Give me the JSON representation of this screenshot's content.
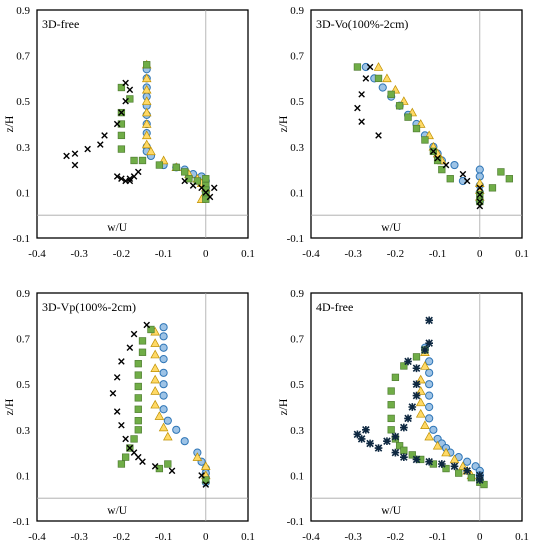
{
  "chart_data": [
    {
      "type": "scatter",
      "title": "3D-free",
      "xlabel": "w/U",
      "ylabel": "z/H",
      "xlim": [
        -0.4,
        0.1
      ],
      "ylim": [
        -0.1,
        0.9
      ],
      "xticks": [
        "-0.4",
        "-0.3",
        "-0.2",
        "-0.1",
        "0",
        "0.1"
      ],
      "yticks": [
        "-0.1",
        "0.1",
        "0.3",
        "0.5",
        "0.7",
        "0.9"
      ],
      "series": [
        {
          "marker": "circle",
          "color": "#9DC3E6",
          "x": [
            -0.14,
            -0.14,
            -0.14,
            -0.14,
            -0.14,
            -0.14,
            -0.14,
            -0.14,
            -0.14,
            -0.14,
            -0.13,
            -0.1,
            -0.07,
            -0.05,
            -0.03,
            -0.01,
            0.0,
            0.0,
            0.0,
            0.0
          ],
          "y": [
            0.64,
            0.6,
            0.56,
            0.52,
            0.48,
            0.44,
            0.4,
            0.36,
            0.3,
            0.28,
            0.26,
            0.22,
            0.21,
            0.2,
            0.18,
            0.17,
            0.15,
            0.12,
            0.1,
            0.08
          ]
        },
        {
          "marker": "triangle",
          "color": "#FFD966",
          "x": [
            -0.14,
            -0.14,
            -0.14,
            -0.14,
            -0.14,
            -0.14,
            -0.14,
            -0.14,
            -0.13,
            -0.1,
            -0.07,
            -0.04,
            -0.02,
            -0.01,
            0.0,
            0.0,
            -0.01
          ],
          "y": [
            0.66,
            0.6,
            0.55,
            0.5,
            0.45,
            0.4,
            0.35,
            0.31,
            0.28,
            0.24,
            0.21,
            0.18,
            0.16,
            0.14,
            0.12,
            0.1,
            0.07
          ]
        },
        {
          "marker": "square",
          "color": "#70AD47",
          "x": [
            -0.14,
            -0.2,
            -0.18,
            -0.2,
            -0.2,
            -0.2,
            -0.2,
            -0.17,
            -0.15,
            -0.11,
            -0.07,
            -0.05,
            -0.04,
            -0.02,
            0.0,
            0.0,
            0.0,
            0.0,
            0.0
          ],
          "y": [
            0.66,
            0.56,
            0.51,
            0.45,
            0.4,
            0.35,
            0.29,
            0.24,
            0.24,
            0.22,
            0.21,
            0.19,
            0.16,
            0.15,
            0.13,
            0.11,
            0.09,
            0.07,
            0.16
          ]
        },
        {
          "marker": "x",
          "color": "#000000",
          "x": [
            -0.19,
            -0.18,
            -0.19,
            -0.2,
            -0.21,
            -0.24,
            -0.25,
            -0.28,
            -0.31,
            -0.33,
            -0.31,
            -0.16,
            -0.17,
            -0.18,
            -0.18,
            -0.19,
            -0.2,
            -0.21,
            -0.05,
            -0.03,
            -0.01,
            0.0,
            0.01,
            0.02
          ],
          "y": [
            0.58,
            0.55,
            0.5,
            0.45,
            0.4,
            0.35,
            0.31,
            0.29,
            0.27,
            0.26,
            0.22,
            0.19,
            0.17,
            0.16,
            0.15,
            0.15,
            0.16,
            0.17,
            0.15,
            0.13,
            0.12,
            0.1,
            0.08,
            0.12
          ]
        }
      ]
    },
    {
      "type": "scatter",
      "title": "3D-Vo(100%-2cm)",
      "xlabel": "w/U",
      "ylabel": "z/H",
      "xlim": [
        -0.4,
        0.1
      ],
      "ylim": [
        -0.1,
        0.9
      ],
      "xticks": [
        "-0.4",
        "-0.3",
        "-0.2",
        "-0.1",
        "0",
        "0.1"
      ],
      "yticks": [
        "-0.1",
        "0.1",
        "0.3",
        "0.5",
        "0.7",
        "0.9"
      ],
      "series": [
        {
          "marker": "circle",
          "color": "#9DC3E6",
          "x": [
            -0.27,
            -0.25,
            -0.23,
            -0.21,
            -0.19,
            -0.17,
            -0.15,
            -0.13,
            -0.11,
            -0.1,
            -0.09,
            -0.06,
            -0.04,
            0.0,
            0.0,
            0.0,
            0.0,
            0.0
          ],
          "y": [
            0.65,
            0.6,
            0.56,
            0.52,
            0.48,
            0.44,
            0.4,
            0.35,
            0.3,
            0.27,
            0.24,
            0.22,
            0.15,
            0.2,
            0.17,
            0.13,
            0.1,
            0.06
          ]
        },
        {
          "marker": "triangle",
          "color": "#FFD966",
          "x": [
            -0.24,
            -0.22,
            -0.2,
            -0.18,
            -0.16,
            -0.14,
            -0.12,
            -0.11,
            -0.1,
            -0.09,
            0.0,
            0.0,
            0.0
          ],
          "y": [
            0.65,
            0.6,
            0.55,
            0.5,
            0.45,
            0.4,
            0.35,
            0.3,
            0.27,
            0.24,
            0.14,
            0.11,
            0.08
          ]
        },
        {
          "marker": "square",
          "color": "#70AD47",
          "x": [
            -0.29,
            -0.24,
            -0.21,
            -0.19,
            -0.17,
            -0.15,
            -0.13,
            -0.11,
            -0.1,
            -0.09,
            -0.07,
            0.05,
            0.07,
            0.03,
            0.0,
            0.0
          ],
          "y": [
            0.65,
            0.6,
            0.53,
            0.48,
            0.43,
            0.38,
            0.33,
            0.28,
            0.24,
            0.2,
            0.16,
            0.19,
            0.16,
            0.12,
            0.09,
            0.06
          ]
        },
        {
          "marker": "x",
          "color": "#000000",
          "x": [
            -0.26,
            -0.27,
            -0.28,
            -0.29,
            -0.28,
            -0.24,
            -0.11,
            -0.1,
            -0.08,
            -0.04,
            -0.03,
            0.0,
            0.0,
            0.0,
            0.0
          ],
          "y": [
            0.65,
            0.6,
            0.53,
            0.47,
            0.41,
            0.35,
            0.28,
            0.25,
            0.22,
            0.18,
            0.15,
            0.12,
            0.09,
            0.06,
            0.04
          ]
        }
      ]
    },
    {
      "type": "scatter",
      "title": "3D-Vp(100%-2cm)",
      "xlabel": "w/U",
      "ylabel": "z/H",
      "xlim": [
        -0.4,
        0.1
      ],
      "ylim": [
        -0.1,
        0.9
      ],
      "xticks": [
        "-0.4",
        "-0.3",
        "-0.2",
        "-0.1",
        "0",
        "0.1"
      ],
      "yticks": [
        "-0.1",
        "0.1",
        "0.3",
        "0.5",
        "0.7",
        "0.9"
      ],
      "series": [
        {
          "marker": "circle",
          "color": "#9DC3E6",
          "x": [
            -0.1,
            -0.1,
            -0.1,
            -0.1,
            -0.1,
            -0.1,
            -0.1,
            -0.1,
            -0.09,
            -0.07,
            -0.05,
            -0.02,
            -0.01,
            0.0,
            0.0,
            0.0,
            0.0
          ],
          "y": [
            0.75,
            0.71,
            0.66,
            0.61,
            0.55,
            0.5,
            0.45,
            0.39,
            0.34,
            0.3,
            0.25,
            0.2,
            0.16,
            0.13,
            0.11,
            0.09,
            0.07
          ]
        },
        {
          "marker": "triangle",
          "color": "#FFD966",
          "x": [
            -0.12,
            -0.12,
            -0.12,
            -0.12,
            -0.12,
            -0.12,
            -0.12,
            -0.11,
            -0.1,
            -0.09,
            -0.02,
            0.0,
            0.0
          ],
          "y": [
            0.73,
            0.68,
            0.63,
            0.57,
            0.52,
            0.47,
            0.41,
            0.36,
            0.31,
            0.27,
            0.18,
            0.14,
            0.1
          ]
        },
        {
          "marker": "square",
          "color": "#70AD47",
          "x": [
            -0.13,
            -0.15,
            -0.15,
            -0.16,
            -0.16,
            -0.16,
            -0.16,
            -0.16,
            -0.16,
            -0.16,
            -0.17,
            -0.18,
            -0.19,
            -0.2,
            -0.11,
            -0.09,
            0.0
          ],
          "y": [
            0.74,
            0.69,
            0.64,
            0.59,
            0.54,
            0.49,
            0.44,
            0.39,
            0.34,
            0.3,
            0.26,
            0.22,
            0.18,
            0.15,
            0.13,
            0.15,
            0.08
          ]
        },
        {
          "marker": "x",
          "color": "#000000",
          "x": [
            -0.14,
            -0.17,
            -0.18,
            -0.2,
            -0.21,
            -0.22,
            -0.21,
            -0.2,
            -0.19,
            -0.18,
            -0.17,
            -0.16,
            -0.15,
            -0.12,
            -0.08,
            -0.01,
            0.0
          ],
          "y": [
            0.76,
            0.72,
            0.66,
            0.6,
            0.53,
            0.46,
            0.38,
            0.32,
            0.26,
            0.22,
            0.2,
            0.18,
            0.16,
            0.14,
            0.12,
            0.1,
            0.06
          ]
        }
      ]
    },
    {
      "type": "scatter",
      "title": "4D-free",
      "xlabel": "w/U",
      "ylabel": "z/H",
      "xlim": [
        -0.4,
        0.1
      ],
      "ylim": [
        -0.1,
        0.9
      ],
      "xticks": [
        "-0.4",
        "-0.3",
        "-0.2",
        "-0.1",
        "0",
        "0.1"
      ],
      "yticks": [
        "-0.1",
        "0.1",
        "0.3",
        "0.5",
        "0.7",
        "0.9"
      ],
      "series": [
        {
          "marker": "circle",
          "color": "#9DC3E6",
          "x": [
            -0.13,
            -0.12,
            -0.12,
            -0.12,
            -0.12,
            -0.12,
            -0.12,
            -0.11,
            -0.1,
            -0.09,
            -0.08,
            -0.07,
            -0.05,
            -0.03,
            -0.01,
            0.0,
            0.0,
            0.0
          ],
          "y": [
            0.66,
            0.6,
            0.55,
            0.5,
            0.45,
            0.4,
            0.35,
            0.3,
            0.26,
            0.24,
            0.22,
            0.2,
            0.18,
            0.16,
            0.14,
            0.12,
            0.1,
            0.08
          ]
        },
        {
          "marker": "triangle",
          "color": "#FFD966",
          "x": [
            -0.13,
            -0.13,
            -0.14,
            -0.14,
            -0.14,
            -0.14,
            -0.13,
            -0.12,
            -0.1,
            -0.08,
            -0.06,
            -0.04,
            -0.03,
            -0.02
          ],
          "y": [
            0.64,
            0.58,
            0.52,
            0.47,
            0.42,
            0.37,
            0.32,
            0.27,
            0.23,
            0.2,
            0.17,
            0.14,
            0.12,
            0.1
          ]
        },
        {
          "marker": "square",
          "color": "#70AD47",
          "x": [
            -0.13,
            -0.15,
            -0.18,
            -0.2,
            -0.21,
            -0.21,
            -0.21,
            -0.21,
            -0.2,
            -0.19,
            -0.18,
            -0.16,
            -0.14,
            -0.11,
            -0.08,
            -0.05,
            -0.02,
            0.0,
            0.01
          ],
          "y": [
            0.65,
            0.62,
            0.58,
            0.53,
            0.47,
            0.41,
            0.35,
            0.3,
            0.26,
            0.23,
            0.21,
            0.19,
            0.17,
            0.15,
            0.13,
            0.11,
            0.09,
            0.07,
            0.06
          ]
        },
        {
          "marker": "star",
          "color": "#0E2841",
          "x": [
            -0.12,
            -0.12,
            -0.13,
            -0.17,
            -0.15,
            -0.15,
            -0.15,
            -0.16,
            -0.17,
            -0.18,
            -0.2,
            -0.22,
            -0.26,
            -0.28,
            -0.29,
            -0.27,
            -0.24,
            -0.2,
            -0.18,
            -0.15,
            -0.12,
            -0.09,
            -0.06,
            -0.03,
            0.0,
            0.0
          ],
          "y": [
            0.78,
            0.68,
            0.65,
            0.6,
            0.57,
            0.5,
            0.45,
            0.4,
            0.35,
            0.31,
            0.27,
            0.25,
            0.24,
            0.26,
            0.28,
            0.3,
            0.22,
            0.2,
            0.18,
            0.17,
            0.16,
            0.15,
            0.14,
            0.12,
            0.1,
            0.08
          ]
        }
      ]
    }
  ]
}
